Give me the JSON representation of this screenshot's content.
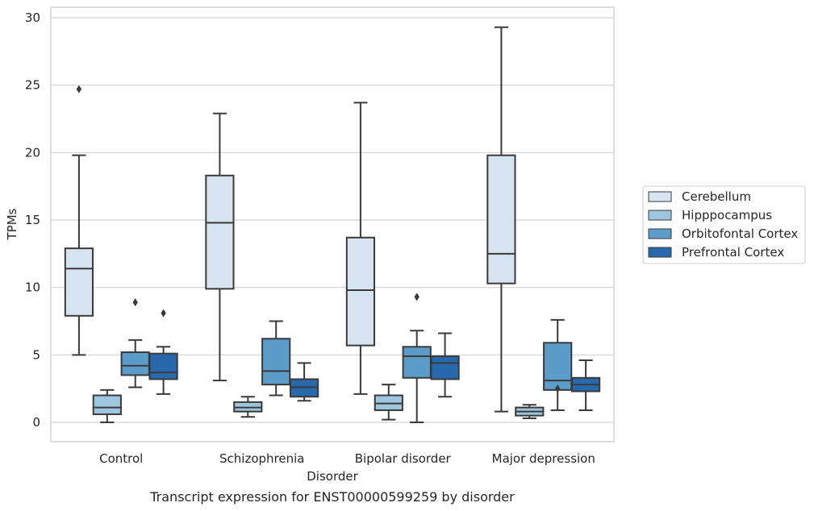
{
  "chart_data": {
    "type": "box",
    "title": "",
    "xlabel": "Disorder",
    "ylabel": "TPMs",
    "caption": "Transcript expression for ENST00000599259 by disorder",
    "categories": [
      "Control",
      "Schizophrenia",
      "Bipolar disorder",
      "Major depression"
    ],
    "ylim": [
      -1.4,
      30.7
    ],
    "yticks": [
      0,
      5,
      10,
      15,
      20,
      25,
      30
    ],
    "grid": true,
    "legend_position": "right",
    "series": [
      {
        "name": "Cerebellum",
        "color": "#d6e4f2",
        "boxes": [
          {
            "whisker_low": 5.0,
            "q1": 7.9,
            "median": 11.4,
            "q3": 12.9,
            "whisker_high": 19.8,
            "outliers": [
              24.7
            ]
          },
          {
            "whisker_low": 3.1,
            "q1": 9.9,
            "median": 14.8,
            "q3": 18.3,
            "whisker_high": 22.9,
            "outliers": []
          },
          {
            "whisker_low": 2.1,
            "q1": 5.7,
            "median": 9.8,
            "q3": 13.7,
            "whisker_high": 23.7,
            "outliers": []
          },
          {
            "whisker_low": 0.8,
            "q1": 10.3,
            "median": 12.5,
            "q3": 19.8,
            "whisker_high": 29.3,
            "outliers": []
          }
        ]
      },
      {
        "name": "Hipppocampus",
        "color": "#9ec6df",
        "boxes": [
          {
            "whisker_low": 0.0,
            "q1": 0.6,
            "median": 1.1,
            "q3": 2.0,
            "whisker_high": 2.4,
            "outliers": []
          },
          {
            "whisker_low": 0.4,
            "q1": 0.8,
            "median": 1.1,
            "q3": 1.5,
            "whisker_high": 1.9,
            "outliers": []
          },
          {
            "whisker_low": 0.2,
            "q1": 0.9,
            "median": 1.4,
            "q3": 2.0,
            "whisker_high": 2.8,
            "outliers": []
          },
          {
            "whisker_low": 0.3,
            "q1": 0.5,
            "median": 0.8,
            "q3": 1.1,
            "whisker_high": 1.3,
            "outliers": []
          }
        ]
      },
      {
        "name": "Orbitofontal Cortex",
        "color": "#5b9cc8",
        "boxes": [
          {
            "whisker_low": 2.6,
            "q1": 3.5,
            "median": 4.2,
            "q3": 5.2,
            "whisker_high": 6.1,
            "outliers": [
              8.9
            ]
          },
          {
            "whisker_low": 2.0,
            "q1": 2.8,
            "median": 3.8,
            "q3": 6.2,
            "whisker_high": 7.5,
            "outliers": []
          },
          {
            "whisker_low": 0.0,
            "q1": 3.3,
            "median": 4.9,
            "q3": 5.6,
            "whisker_high": 6.8,
            "outliers": [
              9.3
            ]
          },
          {
            "whisker_low": 0.9,
            "q1": 2.4,
            "median": 3.1,
            "q3": 5.9,
            "whisker_high": 7.6,
            "outliers": [
              2.5
            ]
          }
        ]
      },
      {
        "name": "Prefrontal Cortex",
        "color": "#2868ac",
        "boxes": [
          {
            "whisker_low": 2.1,
            "q1": 3.2,
            "median": 3.7,
            "q3": 5.1,
            "whisker_high": 5.6,
            "outliers": [
              8.1
            ]
          },
          {
            "whisker_low": 1.6,
            "q1": 1.9,
            "median": 2.6,
            "q3": 3.2,
            "whisker_high": 4.4,
            "outliers": []
          },
          {
            "whisker_low": 1.9,
            "q1": 3.2,
            "median": 4.4,
            "q3": 4.9,
            "whisker_high": 6.6,
            "outliers": []
          },
          {
            "whisker_low": 0.9,
            "q1": 2.3,
            "median": 2.8,
            "q3": 3.3,
            "whisker_high": 4.6,
            "outliers": []
          }
        ]
      }
    ]
  }
}
